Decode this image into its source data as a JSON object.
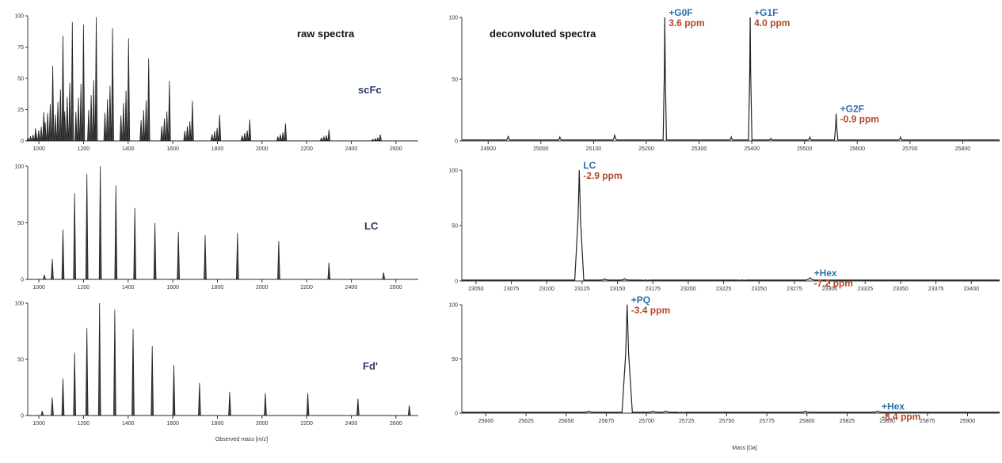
{
  "labels": {
    "raw_title": "raw spectra",
    "deconv_title": "deconvoluted spectra",
    "raw_xlabel": "Observed mass [m/z]",
    "deconv_xlabel": "Mass [Da]"
  },
  "colors": {
    "trace": "#222222",
    "peak_name": "#2f6fa8",
    "peak_ppm": "#b3472a",
    "sample_label": "#2b3a67"
  },
  "chart_data": [
    {
      "type": "line",
      "panel": "raw-scfc",
      "sample": "scFc",
      "xlim": [
        950,
        2700
      ],
      "ylim": [
        0,
        100
      ],
      "xticks": [
        1000,
        1200,
        1400,
        1600,
        1800,
        2000,
        2200,
        2400,
        2600
      ],
      "yticks": [
        0,
        25,
        50,
        75,
        100
      ],
      "ytick_labels": [
        "0",
        "25",
        "50",
        "75",
        "100"
      ],
      "peaks": [
        [
          985,
          10
        ],
        [
          1022,
          23
        ],
        [
          1062,
          60
        ],
        [
          1108,
          84
        ],
        [
          1150,
          95
        ],
        [
          1200,
          93
        ],
        [
          1257,
          99
        ],
        [
          1330,
          90
        ],
        [
          1402,
          82
        ],
        [
          1492,
          66
        ],
        [
          1585,
          48
        ],
        [
          1688,
          32
        ],
        [
          1810,
          21
        ],
        [
          1945,
          17
        ],
        [
          2105,
          14
        ],
        [
          2300,
          9
        ],
        [
          2530,
          5
        ]
      ],
      "satellites": 3
    },
    {
      "type": "line",
      "panel": "raw-lc",
      "sample": "LC",
      "xlim": [
        950,
        2700
      ],
      "ylim": [
        0,
        100
      ],
      "xticks": [
        1000,
        1200,
        1400,
        1600,
        1800,
        2000,
        2200,
        2400,
        2600
      ],
      "yticks": [
        0,
        50,
        100
      ],
      "ytick_labels": [
        "0",
        "50",
        "100"
      ],
      "peaks": [
        [
          1025,
          4
        ],
        [
          1060,
          18
        ],
        [
          1108,
          44
        ],
        [
          1160,
          76
        ],
        [
          1215,
          93
        ],
        [
          1275,
          100
        ],
        [
          1345,
          83
        ],
        [
          1430,
          63
        ],
        [
          1520,
          50
        ],
        [
          1625,
          42
        ],
        [
          1745,
          39
        ],
        [
          1890,
          41
        ],
        [
          2075,
          34
        ],
        [
          2300,
          15
        ],
        [
          2545,
          6
        ]
      ],
      "satellites": 0
    },
    {
      "type": "line",
      "panel": "raw-fd",
      "sample": "Fd'",
      "xlim": [
        950,
        2700
      ],
      "ylim": [
        0,
        100
      ],
      "xticks": [
        1000,
        1200,
        1400,
        1600,
        1800,
        2000,
        2200,
        2400,
        2600
      ],
      "yticks": [
        0,
        50,
        100
      ],
      "ytick_labels": [
        "0",
        "50",
        "100"
      ],
      "peaks": [
        [
          1015,
          4
        ],
        [
          1060,
          16
        ],
        [
          1108,
          33
        ],
        [
          1160,
          56
        ],
        [
          1215,
          78
        ],
        [
          1272,
          100
        ],
        [
          1340,
          94
        ],
        [
          1422,
          77
        ],
        [
          1508,
          62
        ],
        [
          1605,
          45
        ],
        [
          1720,
          29
        ],
        [
          1855,
          21
        ],
        [
          2015,
          20
        ],
        [
          2205,
          20
        ],
        [
          2430,
          15
        ],
        [
          2660,
          9
        ]
      ],
      "satellites": 0
    },
    {
      "type": "line",
      "panel": "deconv-scfc",
      "sample": "scFc",
      "xlim": [
        24850,
        25870
      ],
      "ylim": [
        0,
        100
      ],
      "xticks": [
        24900,
        25000,
        25100,
        25200,
        25300,
        25400,
        25500,
        25600,
        25700,
        25800
      ],
      "yticks": [
        0,
        50,
        100
      ],
      "ytick_labels": [
        "0",
        "50",
        "100"
      ],
      "peak_width": 2,
      "peaks": [
        [
          24938,
          4
        ],
        [
          25036,
          3
        ],
        [
          25140,
          5
        ],
        [
          25235,
          100
        ],
        [
          25361,
          3
        ],
        [
          25397,
          100
        ],
        [
          25436,
          2
        ],
        [
          25510,
          3
        ],
        [
          25560,
          22
        ],
        [
          25682,
          3
        ]
      ],
      "annotations": [
        {
          "name": "+G0F",
          "ppm": "3.6 ppm",
          "x": 25235,
          "y": 100
        },
        {
          "name": "+G1F",
          "ppm": "4.0 ppm",
          "x": 25397,
          "y": 100
        },
        {
          "name": "+G2F",
          "ppm": "-0.9 ppm",
          "x": 25560,
          "y": 22
        }
      ]
    },
    {
      "type": "line",
      "panel": "deconv-lc",
      "sample": "LC",
      "xlim": [
        23040,
        23420
      ],
      "ylim": [
        0,
        100
      ],
      "xticks": [
        23050,
        23075,
        23100,
        23125,
        23150,
        23175,
        23200,
        23225,
        23250,
        23275,
        23300,
        23325,
        23350,
        23375,
        23400
      ],
      "yticks": [
        0,
        50,
        100
      ],
      "ytick_labels": [
        "0",
        "50",
        "100"
      ],
      "peak_width": 2,
      "peaks": [
        [
          23123,
          100
        ],
        [
          23141,
          2
        ],
        [
          23155,
          2
        ],
        [
          23170,
          1
        ],
        [
          23238,
          1
        ],
        [
          23286,
          3
        ]
      ],
      "annotations": [
        {
          "name": "LC",
          "ppm": "-2.9 ppm",
          "x": 23123,
          "y": 100
        },
        {
          "name": "+Hex",
          "ppm": "-7.2 ppm",
          "x": 23286,
          "y": 3
        }
      ]
    },
    {
      "type": "line",
      "panel": "deconv-fd",
      "sample": "Fd'",
      "xlim": [
        25585,
        25920
      ],
      "ylim": [
        0,
        100
      ],
      "xticks": [
        25600,
        25625,
        25650,
        25675,
        25700,
        25725,
        25750,
        25775,
        25800,
        25825,
        25850,
        25875,
        25900
      ],
      "yticks": [
        0,
        50,
        100
      ],
      "ytick_labels": [
        "0",
        "50",
        "100"
      ],
      "peak_width": 2,
      "peaks": [
        [
          25664,
          2
        ],
        [
          25688,
          100
        ],
        [
          25704,
          2
        ],
        [
          25712,
          2
        ],
        [
          25722,
          1
        ],
        [
          25799,
          2
        ],
        [
          25844,
          2
        ]
      ],
      "annotations": [
        {
          "name": "+PQ",
          "ppm": "-3.4 ppm",
          "x": 25688,
          "y": 100
        },
        {
          "name": "+Hex",
          "ppm": "-8.4 ppm",
          "x": 25844,
          "y": 2
        }
      ]
    }
  ]
}
